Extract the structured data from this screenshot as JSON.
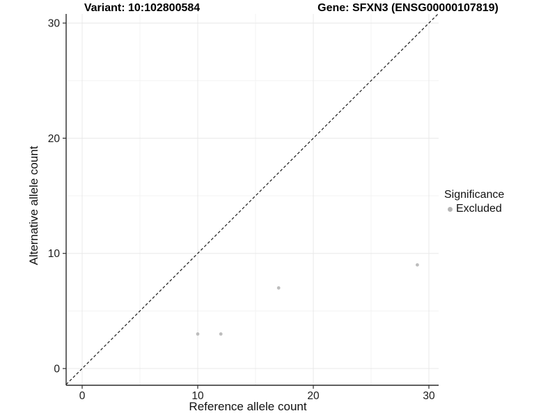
{
  "chart_data": {
    "type": "scatter",
    "title_left": "Variant: 10:102800584",
    "title_right": "Gene: SFXN3 (ENSG00000107819)",
    "xlabel": "Reference allele count",
    "ylabel": "Alternative allele count",
    "xlim": [
      0,
      30
    ],
    "ylim": [
      0,
      30
    ],
    "x_ticks": [
      0,
      10,
      20,
      30
    ],
    "y_ticks": [
      0,
      10,
      20,
      30
    ],
    "x_minor_ticks": [
      5,
      15,
      25
    ],
    "y_minor_ticks": [
      5,
      15,
      25
    ],
    "grid": true,
    "reference_line": {
      "type": "identity",
      "style": "dashed",
      "color": "#1a1a1a"
    },
    "series": [
      {
        "name": "Excluded",
        "color": "#bdbdbd",
        "points": [
          {
            "x": 10,
            "y": 3
          },
          {
            "x": 12,
            "y": 3
          },
          {
            "x": 17,
            "y": 7
          },
          {
            "x": 29,
            "y": 9
          }
        ]
      }
    ],
    "legend": {
      "title": "Significance",
      "position": "right",
      "entries": [
        {
          "label": "Excluded",
          "color": "#b5b5b5"
        }
      ]
    },
    "colors": {
      "grid_major": "#e8e8e8",
      "grid_minor": "#f3f3f3",
      "axis_line": "#2b2b2b",
      "tick_text": "#1a1a1a",
      "point": "#bdbdbd"
    }
  }
}
